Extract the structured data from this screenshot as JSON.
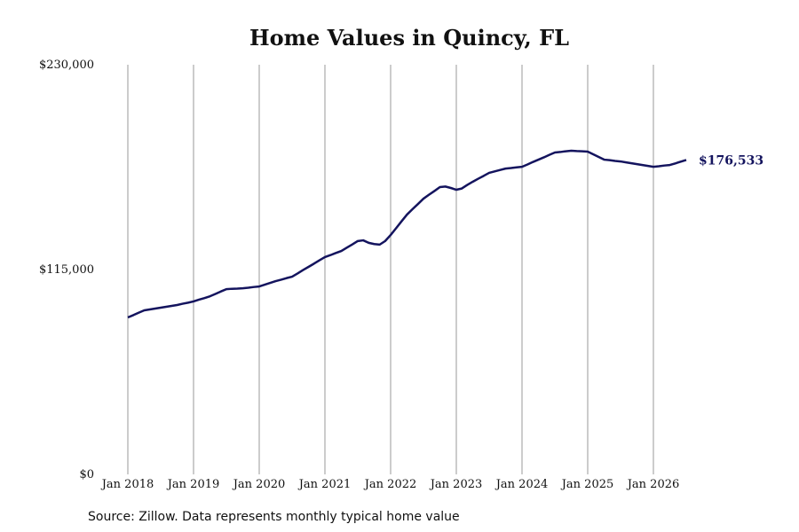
{
  "chart_data": {
    "type": "line",
    "title": "Home Values in Quincy, FL",
    "source": "Source: Zillow. Data represents monthly typical home value",
    "color": "#14145e",
    "grid": "x",
    "x": [
      "2018-01",
      "2018-02",
      "2018-03",
      "2018-04",
      "2018-05",
      "2018-06",
      "2018-07",
      "2018-08",
      "2018-09",
      "2018-10",
      "2018-11",
      "2018-12",
      "2019-01",
      "2019-02",
      "2019-03",
      "2019-04",
      "2019-05",
      "2019-06",
      "2019-07",
      "2019-08",
      "2019-09",
      "2019-10",
      "2019-11",
      "2019-12",
      "2020-01",
      "2020-02",
      "2020-03",
      "2020-04",
      "2020-05",
      "2020-06",
      "2020-07",
      "2020-08",
      "2020-09",
      "2020-10",
      "2020-11",
      "2020-12",
      "2021-01",
      "2021-02",
      "2021-03",
      "2021-04",
      "2021-05",
      "2021-06",
      "2021-07",
      "2021-08",
      "2021-09",
      "2021-10",
      "2021-11",
      "2021-12",
      "2022-01",
      "2022-02",
      "2022-03",
      "2022-04",
      "2022-05",
      "2022-06",
      "2022-07",
      "2022-08",
      "2022-09",
      "2022-10",
      "2022-11",
      "2022-12",
      "2023-01",
      "2023-02",
      "2023-03",
      "2023-04",
      "2023-05",
      "2023-06",
      "2023-07",
      "2023-08",
      "2023-09",
      "2023-10",
      "2023-11",
      "2023-12",
      "2024-01",
      "2024-02",
      "2024-03",
      "2024-04",
      "2024-05",
      "2024-06",
      "2024-07",
      "2024-08",
      "2024-09",
      "2024-10",
      "2024-11",
      "2024-12",
      "2025-01",
      "2025-02",
      "2025-03",
      "2025-04",
      "2025-05",
      "2025-06",
      "2025-07",
      "2025-08",
      "2025-09",
      "2025-10",
      "2025-11",
      "2025-12",
      "2026-01",
      "2026-02",
      "2026-03",
      "2026-04",
      "2026-05",
      "2026-06",
      "2026-07"
    ],
    "values": [
      88100,
      89400,
      90800,
      92100,
      92600,
      93100,
      93600,
      94100,
      94600,
      95100,
      95800,
      96400,
      97100,
      98100,
      99000,
      100000,
      101300,
      102700,
      104000,
      104200,
      104300,
      104500,
      104800,
      105200,
      105500,
      106500,
      107500,
      108500,
      109300,
      110200,
      111000,
      112800,
      114700,
      116500,
      118300,
      120200,
      122000,
      123100,
      124300,
      125400,
      127300,
      129100,
      131000,
      131400,
      130000,
      129300,
      129000,
      131000,
      134400,
      138200,
      142100,
      145900,
      148900,
      151800,
      154800,
      157000,
      159100,
      161300,
      161600,
      160800,
      159800,
      160500,
      162500,
      164300,
      166000,
      167600,
      169300,
      170100,
      170900,
      171700,
      172000,
      172400,
      172700,
      174000,
      175400,
      176700,
      178000,
      179400,
      180700,
      181000,
      181400,
      181700,
      181500,
      181400,
      181200,
      179700,
      178200,
      176700,
      176400,
      176000,
      175700,
      175200,
      174700,
      174200,
      173700,
      173200,
      172700,
      173000,
      173400,
      173700,
      174600,
      175600,
      176533
    ],
    "value_labels": [
      null,
      null,
      null,
      null,
      null,
      null,
      null,
      null,
      null,
      null,
      null,
      null,
      null,
      null,
      null,
      null,
      null,
      null,
      null,
      null,
      null,
      null,
      null,
      null,
      null,
      null,
      null,
      null,
      null,
      null,
      null,
      null,
      null,
      null,
      null,
      null,
      null,
      null,
      null,
      null,
      null,
      null,
      null,
      null,
      null,
      null,
      null,
      null,
      null,
      null,
      null,
      null,
      null,
      null,
      null,
      null,
      null,
      null,
      null,
      null,
      null,
      null,
      null,
      null,
      null,
      null,
      null,
      null,
      null,
      null,
      null,
      null,
      null,
      null,
      null,
      null,
      null,
      null,
      null,
      null,
      null,
      null,
      null,
      null,
      null,
      null,
      null,
      null,
      null,
      null,
      null,
      null,
      null,
      null,
      null,
      null,
      null,
      null,
      null,
      null,
      null,
      null,
      "$176,533"
    ],
    "xticks": [
      {
        "value": "2018-01",
        "label": "Jan 2018"
      },
      {
        "value": "2019-01",
        "label": "Jan 2019"
      },
      {
        "value": "2020-01",
        "label": "Jan 2020"
      },
      {
        "value": "2021-01",
        "label": "Jan 2021"
      },
      {
        "value": "2022-01",
        "label": "Jan 2022"
      },
      {
        "value": "2023-01",
        "label": "Jan 2023"
      },
      {
        "value": "2024-01",
        "label": "Jan 2024"
      },
      {
        "value": "2025-01",
        "label": "Jan 2025"
      },
      {
        "value": "2026-01",
        "label": "Jan 2026"
      }
    ],
    "ylim": [
      0,
      230000
    ],
    "yticks": [
      {
        "value": 0,
        "label": "$0"
      },
      {
        "value": 115000,
        "label": "$115,000"
      },
      {
        "value": 230000,
        "label": "$230,000"
      }
    ]
  }
}
